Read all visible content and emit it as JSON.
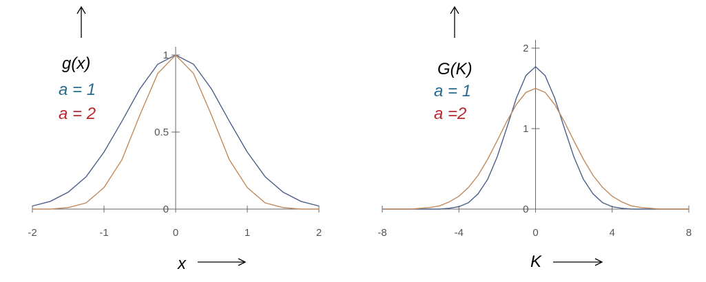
{
  "chart_data": [
    {
      "type": "line",
      "ylabel": "g(x)",
      "xlabel": "x",
      "x": [
        -2,
        -1.75,
        -1.5,
        -1.25,
        -1,
        -0.75,
        -0.5,
        -0.25,
        0,
        0.25,
        0.5,
        0.75,
        1,
        1.25,
        1.5,
        1.75,
        2
      ],
      "series": [
        {
          "name": "a = 1",
          "color": "#4a5e8a",
          "label_color": "#2a6a8e",
          "values": [
            0.02,
            0.05,
            0.11,
            0.21,
            0.37,
            0.57,
            0.78,
            0.94,
            1,
            0.94,
            0.78,
            0.57,
            0.37,
            0.21,
            0.11,
            0.05,
            0.02
          ]
        },
        {
          "name": "a = 2",
          "color": "#c08a5e",
          "label_color": "#b8282e",
          "values": [
            0,
            0,
            0.01,
            0.04,
            0.14,
            0.32,
            0.61,
            0.88,
            1,
            0.88,
            0.61,
            0.32,
            0.14,
            0.04,
            0.01,
            0,
            0
          ]
        }
      ],
      "xlim": [
        -2,
        2
      ],
      "ylim": [
        0,
        1
      ],
      "xticks": [
        -2,
        -1,
        0,
        1,
        2
      ],
      "yticks": [
        0,
        0.5,
        1
      ]
    },
    {
      "type": "line",
      "ylabel": "G(K)",
      "xlabel": "K",
      "x": [
        -8,
        -7.5,
        -7,
        -6.5,
        -6,
        -5.5,
        -5,
        -4.5,
        -4,
        -3.5,
        -3,
        -2.5,
        -2,
        -1.5,
        -1,
        -0.5,
        0,
        0.5,
        1,
        1.5,
        2,
        2.5,
        3,
        3.5,
        4,
        4.5,
        5,
        5.5,
        6,
        6.5,
        7,
        7.5,
        8
      ],
      "series": [
        {
          "name": "a = 1",
          "color": "#4a5e8a",
          "label_color": "#2a6a8e",
          "values": [
            0,
            0,
            0,
            0,
            0,
            0,
            0,
            0.01,
            0.03,
            0.08,
            0.19,
            0.37,
            0.65,
            1.01,
            1.38,
            1.66,
            1.77,
            1.66,
            1.38,
            1.01,
            0.65,
            0.37,
            0.19,
            0.08,
            0.03,
            0.01,
            0,
            0,
            0,
            0,
            0,
            0,
            0
          ]
        },
        {
          "name": "a =2",
          "color": "#c08a5e",
          "label_color": "#b8282e",
          "values": [
            0,
            0,
            0,
            0,
            0.01,
            0.02,
            0.04,
            0.09,
            0.16,
            0.27,
            0.42,
            0.62,
            0.85,
            1.09,
            1.3,
            1.45,
            1.5,
            1.45,
            1.3,
            1.09,
            0.85,
            0.62,
            0.42,
            0.27,
            0.16,
            0.09,
            0.04,
            0.02,
            0.01,
            0,
            0,
            0,
            0
          ]
        }
      ],
      "xlim": [
        -8,
        8
      ],
      "ylim": [
        0,
        2
      ],
      "xticks": [
        -8,
        -4,
        0,
        4,
        8
      ],
      "yticks": [
        0,
        1,
        2
      ]
    }
  ]
}
